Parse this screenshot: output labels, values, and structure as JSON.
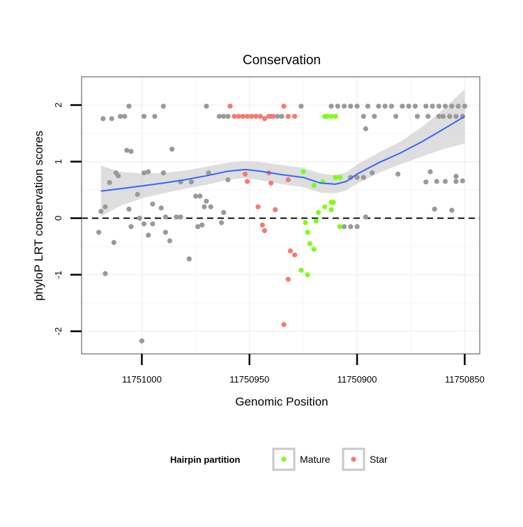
{
  "chart_data": {
    "type": "scatter",
    "title": "Conservation",
    "xlabel": "Genomic Position",
    "ylabel": "phyloP LRT conservation scores",
    "x_reversed": true,
    "xlim": [
      11751028,
      11750843
    ],
    "ylim": [
      -2.4,
      2.5
    ],
    "x_ticks": [
      11751000,
      11750950,
      11750900,
      11750850
    ],
    "x_tick_labels": [
      "11751000",
      "11750950",
      "11750900",
      "11750850"
    ],
    "y_ticks": [
      -2,
      -1,
      0,
      1,
      2
    ],
    "y_tick_labels": [
      "-2",
      "-1",
      "0",
      "1",
      "2"
    ],
    "reference_line": {
      "y": 0,
      "style": "dashed",
      "color": "#000000"
    },
    "legend": {
      "title": "Hairpin partition",
      "position": "bottom",
      "entries": [
        {
          "label": "Mature",
          "color": "#7CFC1A"
        },
        {
          "label": "Star",
          "color": "#F47B6E"
        }
      ]
    },
    "colors": {
      "other": "#999999",
      "Mature": "#7CFC1A",
      "Star": "#F47B6E",
      "smooth_line": "#3366FF",
      "ribbon": "#C8C8C8",
      "panel_border": "#7F7F7F",
      "grid": "#F2F2F2"
    },
    "series": [
      {
        "name": "other",
        "points": [
          [
            11751018,
            1.76
          ],
          [
            11751014,
            1.76
          ],
          [
            11751010,
            1.8
          ],
          [
            11751008,
            1.8
          ],
          [
            11751006,
            1.98
          ],
          [
            11750999,
            1.8
          ],
          [
            11750994,
            1.8
          ],
          [
            11750990,
            1.98
          ],
          [
            11750970,
            1.98
          ],
          [
            11750964,
            1.8
          ],
          [
            11750962,
            1.8
          ],
          [
            11750960,
            1.8
          ],
          [
            11750940,
            1.8
          ],
          [
            11750937,
            1.8
          ],
          [
            11750935,
            1.8
          ],
          [
            11750926,
            1.98
          ],
          [
            11750912,
            1.98
          ],
          [
            11750909,
            1.98
          ],
          [
            11750906,
            1.98
          ],
          [
            11750903,
            1.98
          ],
          [
            11750900,
            1.98
          ],
          [
            11750897,
            1.8
          ],
          [
            11750895,
            1.98
          ],
          [
            11750892,
            1.8
          ],
          [
            11750890,
            1.98
          ],
          [
            11750887,
            1.98
          ],
          [
            11750884,
            1.98
          ],
          [
            11750882,
            1.8
          ],
          [
            11750879,
            1.98
          ],
          [
            11750876,
            1.98
          ],
          [
            11750873,
            1.98
          ],
          [
            11750868,
            1.98
          ],
          [
            11750865,
            1.98
          ],
          [
            11750862,
            1.98
          ],
          [
            11750859,
            1.98
          ],
          [
            11750856,
            1.98
          ],
          [
            11750853,
            1.98
          ],
          [
            11750850,
            1.98
          ],
          [
            11750860,
            1.8
          ],
          [
            11750857,
            1.8
          ],
          [
            11750854,
            1.8
          ],
          [
            11750851,
            1.8
          ],
          [
            11750867,
            1.8
          ],
          [
            11750862,
            1.8
          ],
          [
            11750872,
            1.8
          ],
          [
            11750896,
            1.58
          ],
          [
            11751007,
            1.2
          ],
          [
            11751005,
            1.18
          ],
          [
            11750986,
            1.22
          ],
          [
            11751012,
            0.8
          ],
          [
            11751011,
            0.75
          ],
          [
            11750999,
            0.8
          ],
          [
            11750997,
            0.82
          ],
          [
            11750990,
            0.8
          ],
          [
            11750982,
            0.64
          ],
          [
            11750977,
            0.64
          ],
          [
            11750975,
            0.39
          ],
          [
            11750973,
            0.39
          ],
          [
            11750969,
            0.8
          ],
          [
            11750960,
            0.68
          ],
          [
            11750893,
            0.8
          ],
          [
            11750881,
            0.78
          ],
          [
            11750868,
            0.64
          ],
          [
            11750866,
            0.82
          ],
          [
            11750863,
            0.65
          ],
          [
            11750859,
            0.65
          ],
          [
            11750854,
            0.74
          ],
          [
            11750851,
            0.66
          ],
          [
            11750854,
            0.65
          ],
          [
            11751019,
            0.12
          ],
          [
            11751017,
            0.2
          ],
          [
            11751015,
            0.63
          ],
          [
            11751006,
            0.16
          ],
          [
            11751002,
            0.42
          ],
          [
            11750995,
            0.25
          ],
          [
            11750991,
            0.18
          ],
          [
            11750989,
            0.02
          ],
          [
            11750984,
            0.02
          ],
          [
            11750982,
            0.02
          ],
          [
            11750971,
            0.2
          ],
          [
            11750970,
            0.3
          ],
          [
            11750968,
            0.2
          ],
          [
            11750962,
            0.1
          ],
          [
            11750864,
            0.16
          ],
          [
            11750856,
            0.14
          ],
          [
            11751020,
            -0.25
          ],
          [
            11751013,
            -0.43
          ],
          [
            11751005,
            -0.15
          ],
          [
            11751001,
            0.0
          ],
          [
            11750999,
            -0.1
          ],
          [
            11750997,
            -0.3
          ],
          [
            11750995,
            -0.1
          ],
          [
            11750987,
            -0.4
          ],
          [
            11750989,
            -0.25
          ],
          [
            11750974,
            -0.15
          ],
          [
            11750972,
            -0.12
          ],
          [
            11750963,
            -0.08
          ],
          [
            11750906,
            -0.15
          ],
          [
            11750903,
            -0.15
          ],
          [
            11750900,
            -0.15
          ],
          [
            11750896,
            0.02
          ],
          [
            11750978,
            -0.72
          ],
          [
            11751017,
            -0.98
          ],
          [
            11751000,
            -2.17
          ],
          [
            11750903,
            0.72
          ],
          [
            11750900,
            0.72
          ],
          [
            11750897,
            0.72
          ]
        ]
      },
      {
        "name": "Mature",
        "points": [
          [
            11750925,
            0.82
          ],
          [
            11750920,
            0.58
          ],
          [
            11750916,
            0.64
          ],
          [
            11750918,
            0.1
          ],
          [
            11750915,
            0.2
          ],
          [
            11750912,
            0.28
          ],
          [
            11750911,
            0.28
          ],
          [
            11750910,
            0.72
          ],
          [
            11750908,
            0.72
          ],
          [
            11750912,
            0.15
          ],
          [
            11750908,
            -0.15
          ],
          [
            11750924,
            -0.08
          ],
          [
            11750923,
            -0.25
          ],
          [
            11750922,
            -0.45
          ],
          [
            11750920,
            -0.55
          ],
          [
            11750919,
            -0.05
          ],
          [
            11750926,
            -0.92
          ],
          [
            11750923,
            -1.0
          ],
          [
            11750915,
            1.8
          ],
          [
            11750914,
            1.8
          ],
          [
            11750912,
            1.8
          ],
          [
            11750910,
            1.8
          ]
        ]
      },
      {
        "name": "Star",
        "points": [
          [
            11750959,
            1.98
          ],
          [
            11750957,
            1.8
          ],
          [
            11750955,
            1.8
          ],
          [
            11750953,
            1.8
          ],
          [
            11750951,
            1.8
          ],
          [
            11750949,
            1.8
          ],
          [
            11750947,
            1.8
          ],
          [
            11750945,
            1.8
          ],
          [
            11750943,
            1.76
          ],
          [
            11750941,
            1.8
          ],
          [
            11750939,
            1.8
          ],
          [
            11750934,
            1.98
          ],
          [
            11750932,
            1.8
          ],
          [
            11750929,
            1.8
          ],
          [
            11750952,
            0.78
          ],
          [
            11750951,
            0.65
          ],
          [
            11750946,
            0.2
          ],
          [
            11750941,
            0.8
          ],
          [
            11750940,
            0.62
          ],
          [
            11750932,
            0.68
          ],
          [
            11750944,
            -0.12
          ],
          [
            11750943,
            -0.22
          ],
          [
            11750938,
            0.15
          ],
          [
            11750931,
            -0.58
          ],
          [
            11750929,
            -0.65
          ],
          [
            11750932,
            -1.08
          ],
          [
            11750934,
            -1.88
          ]
        ]
      }
    ],
    "smooth": {
      "x": [
        11751019,
        11751010,
        11751000,
        11750990,
        11750980,
        11750970,
        11750960,
        11750952,
        11750945,
        11750935,
        11750925,
        11750917,
        11750910,
        11750905,
        11750900,
        11750890,
        11750880,
        11750870,
        11750860,
        11750850
      ],
      "y": [
        0.48,
        0.52,
        0.57,
        0.62,
        0.68,
        0.75,
        0.83,
        0.86,
        0.83,
        0.77,
        0.72,
        0.62,
        0.6,
        0.65,
        0.78,
        0.98,
        1.15,
        1.35,
        1.57,
        1.8
      ],
      "se": [
        0.45,
        0.3,
        0.22,
        0.18,
        0.16,
        0.16,
        0.15,
        0.15,
        0.16,
        0.17,
        0.17,
        0.17,
        0.16,
        0.16,
        0.17,
        0.18,
        0.2,
        0.26,
        0.35,
        0.48
      ]
    }
  }
}
